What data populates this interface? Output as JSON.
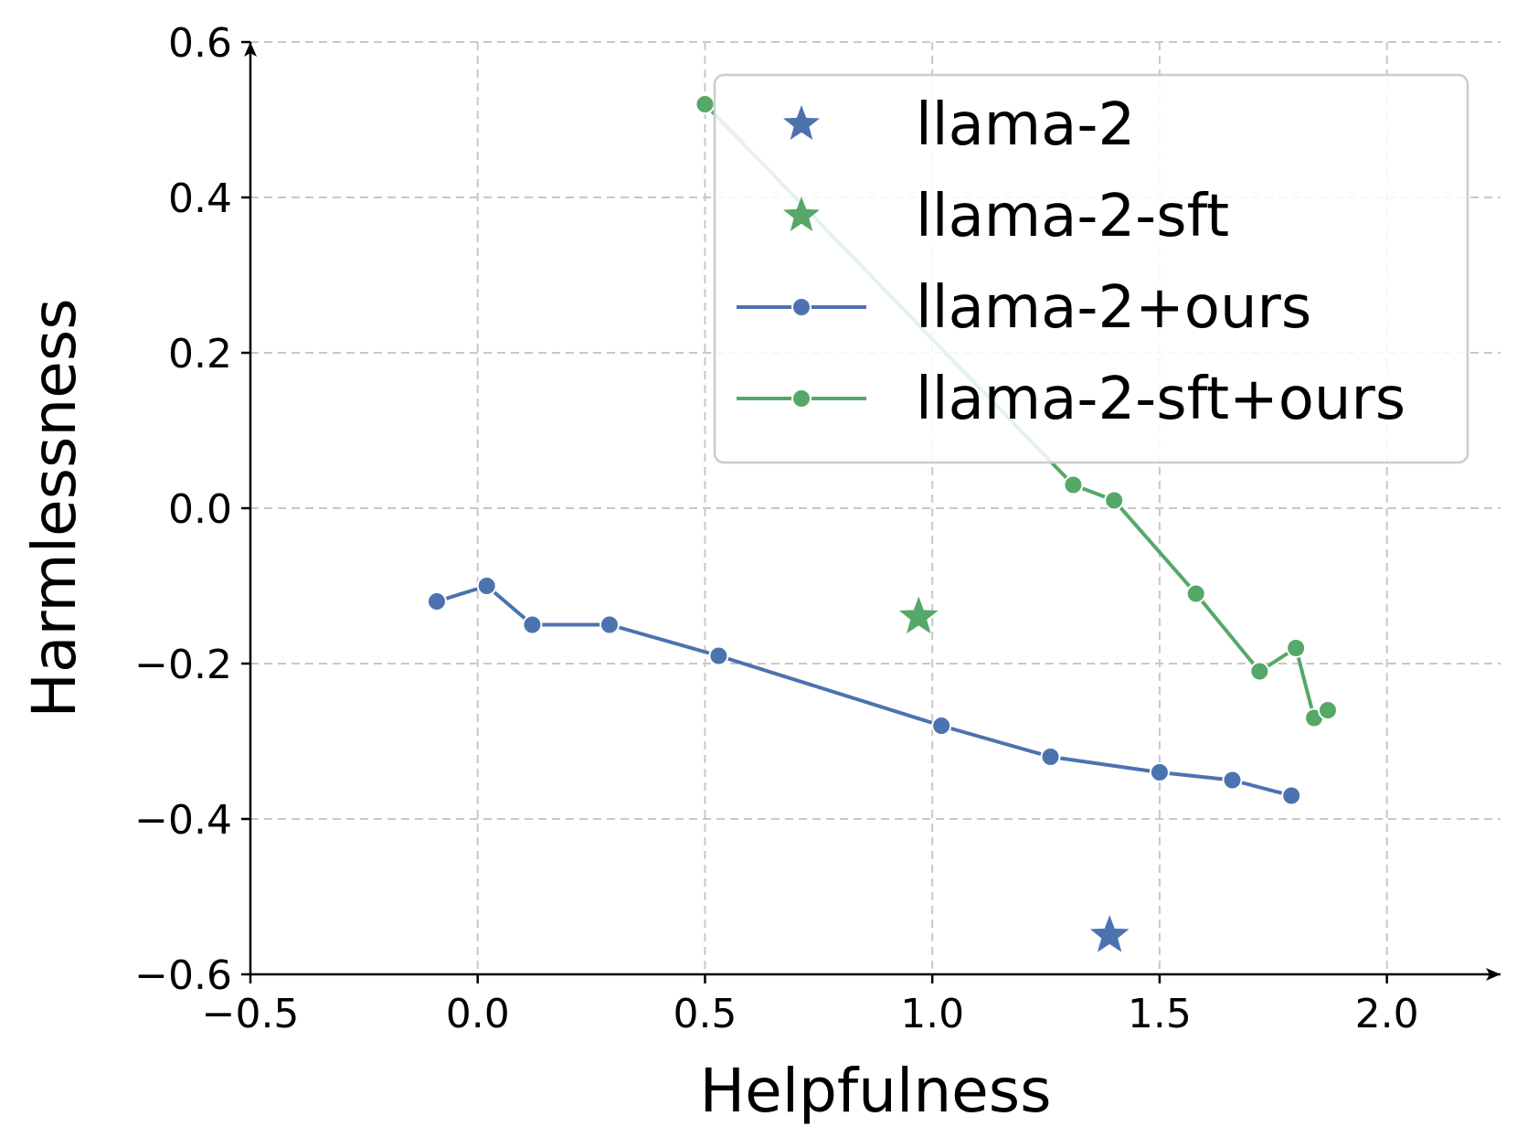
{
  "chart_data": {
    "type": "scatter",
    "title": "",
    "xlabel": "Helpfulness",
    "ylabel": "Harmlessness",
    "xlim": [
      -0.5,
      2.25
    ],
    "ylim": [
      -0.6,
      0.6
    ],
    "xticks": [
      -0.5,
      0.0,
      0.5,
      1.0,
      1.5,
      2.0
    ],
    "yticks": [
      -0.6,
      -0.4,
      -0.2,
      0.0,
      0.2,
      0.4,
      0.6
    ],
    "xtick_labels": [
      "−0.5",
      "0.0",
      "0.5",
      "1.0",
      "1.5",
      "2.0"
    ],
    "ytick_labels": [
      "−0.6",
      "−0.4",
      "−0.2",
      "0.0",
      "0.2",
      "0.4",
      "0.6"
    ],
    "grid": true,
    "legend_position": "top-right",
    "series": [
      {
        "name": "llama-2",
        "kind": "star",
        "color": "#4c72b0",
        "points": [
          [
            1.39,
            -0.55
          ]
        ]
      },
      {
        "name": "llama-2-sft",
        "kind": "star",
        "color": "#55a868",
        "points": [
          [
            0.97,
            -0.14
          ]
        ]
      },
      {
        "name": "llama-2+ours",
        "kind": "line",
        "color": "#4c72b0",
        "points": [
          [
            -0.09,
            -0.12
          ],
          [
            0.02,
            -0.1
          ],
          [
            0.12,
            -0.15
          ],
          [
            0.29,
            -0.15
          ],
          [
            0.53,
            -0.19
          ],
          [
            1.02,
            -0.28
          ],
          [
            1.26,
            -0.32
          ],
          [
            1.5,
            -0.34
          ],
          [
            1.66,
            -0.35
          ],
          [
            1.79,
            -0.37
          ]
        ]
      },
      {
        "name": "llama-2-sft+ours",
        "kind": "line",
        "color": "#55a868",
        "points": [
          [
            0.5,
            0.52
          ],
          [
            1.31,
            0.03
          ],
          [
            1.4,
            0.01
          ],
          [
            1.58,
            -0.11
          ],
          [
            1.72,
            -0.21
          ],
          [
            1.8,
            -0.18
          ],
          [
            1.84,
            -0.27
          ],
          [
            1.87,
            -0.26
          ]
        ]
      }
    ]
  }
}
